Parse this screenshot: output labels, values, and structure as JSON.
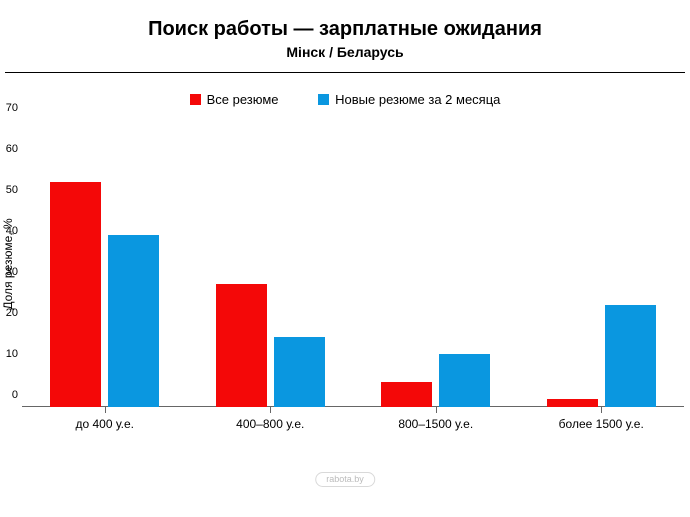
{
  "chart": {
    "type": "grouped-bar",
    "title": "Поиск работы — зарплатные ожидания",
    "subtitle": "Мінск / Беларусь",
    "background_color": "#ffffff",
    "title_fontsize": 20,
    "subtitle_fontsize": 14,
    "legend": {
      "items": [
        {
          "label": "Все резюме",
          "color": "#f40808"
        },
        {
          "label": "Новые резюме за 2 месяца",
          "color": "#0a97e0"
        }
      ],
      "fontsize": 13
    },
    "x": {
      "title": "",
      "categories": [
        "до 400 у.е.",
        "400–800 у.е.",
        "800–1500 у.е.",
        "более 1500 у.е."
      ],
      "label_fontsize": 12
    },
    "y": {
      "title": "Доля резюме, %",
      "min": 0,
      "max": 70,
      "tick_step": 10,
      "ticks": [
        0,
        10,
        20,
        30,
        40,
        50,
        60,
        70
      ],
      "label_fontsize": 11
    },
    "series": [
      {
        "name": "Все резюме",
        "color": "#f40808",
        "values": [
          55,
          30,
          6,
          2
        ]
      },
      {
        "name": "Новые резюме за 2 месяца",
        "color": "#0a97e0",
        "values": [
          42,
          17,
          13,
          25
        ]
      }
    ],
    "bar": {
      "group_gap_ratio": 0.34,
      "inner_gap_ratio": 0.06
    },
    "axis_color": "#666666"
  },
  "watermark": "rabota.by"
}
